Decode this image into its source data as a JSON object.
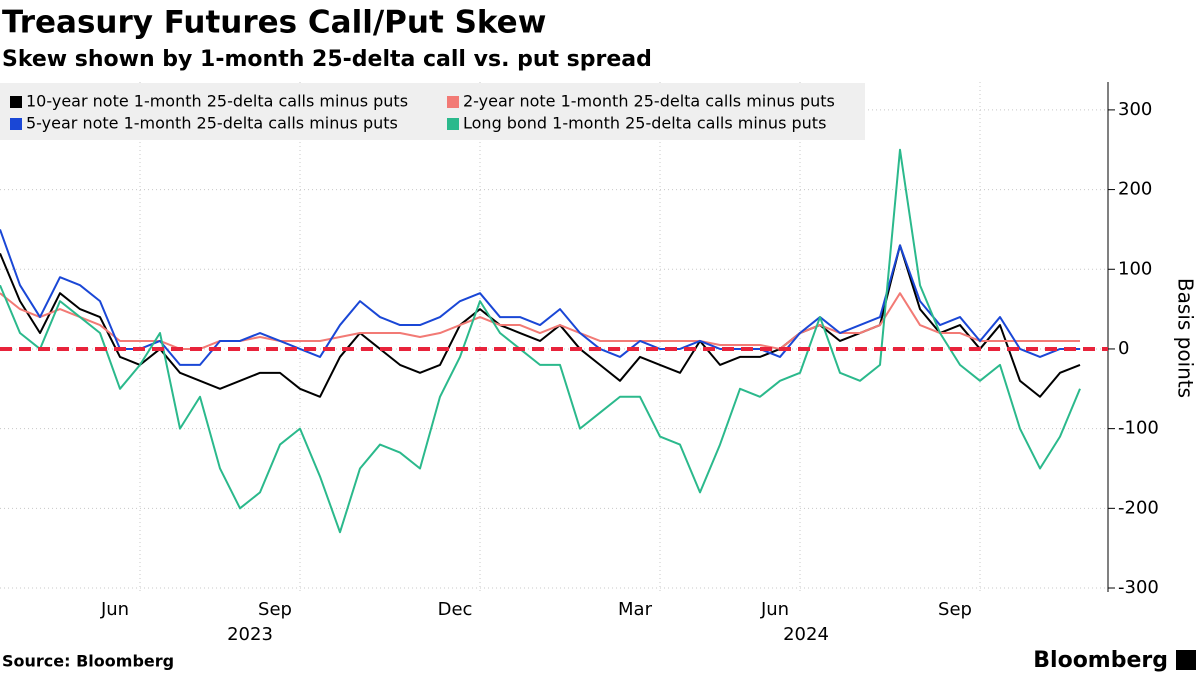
{
  "chart_data": {
    "type": "line",
    "title": "Treasury Futures Call/Put Skew",
    "subtitle": "Skew shown by 1-month 25-delta call vs. put spread",
    "y_label": "Basis points",
    "source": "Source: Bloomberg",
    "brand": "Bloomberg",
    "categories": [
      null,
      null,
      null,
      null,
      null,
      null,
      null,
      "Jun",
      null,
      null,
      null,
      null,
      null,
      null,
      null,
      "Sep",
      null,
      null,
      null,
      null,
      null,
      null,
      null,
      null,
      "Dec",
      null,
      null,
      null,
      null,
      null,
      null,
      null,
      null,
      "Mar",
      null,
      null,
      null,
      null,
      null,
      null,
      "Jun",
      null,
      null,
      null,
      null,
      null,
      null,
      null,
      null,
      "Sep",
      null,
      null,
      null,
      null,
      null
    ],
    "year_labels": [
      "2023",
      "2024"
    ],
    "series": [
      {
        "name": "10-year note 1-month 25-delta calls minus puts",
        "color": "#000000",
        "values": [
          120,
          60,
          20,
          70,
          50,
          40,
          -10,
          -20,
          0,
          -30,
          -40,
          -50,
          -40,
          -30,
          -30,
          -50,
          -60,
          -10,
          20,
          0,
          -20,
          -30,
          -20,
          30,
          50,
          30,
          20,
          10,
          30,
          0,
          -20,
          -40,
          -10,
          -20,
          -30,
          10,
          -20,
          -10,
          -10,
          0,
          20,
          30,
          10,
          20,
          30,
          130,
          50,
          20,
          30,
          0,
          30,
          -40,
          -60,
          -30,
          -20
        ]
      },
      {
        "name": "2-year note 1-month 25-delta calls minus puts",
        "color": "#f27a75",
        "values": [
          70,
          50,
          40,
          50,
          40,
          30,
          10,
          10,
          10,
          0,
          0,
          10,
          10,
          15,
          10,
          10,
          10,
          15,
          20,
          20,
          20,
          15,
          20,
          30,
          40,
          30,
          30,
          20,
          30,
          20,
          10,
          10,
          10,
          10,
          10,
          10,
          5,
          5,
          5,
          0,
          20,
          30,
          20,
          20,
          30,
          70,
          30,
          20,
          20,
          10,
          10,
          10,
          10,
          10,
          10
        ]
      },
      {
        "name": "5-year note 1-month 25-delta calls minus puts",
        "color": "#1a47d6",
        "values": [
          150,
          80,
          40,
          90,
          80,
          60,
          0,
          0,
          10,
          -20,
          -20,
          10,
          10,
          20,
          10,
          0,
          -10,
          30,
          60,
          40,
          30,
          30,
          40,
          60,
          70,
          40,
          40,
          30,
          50,
          20,
          0,
          -10,
          10,
          0,
          0,
          10,
          0,
          0,
          0,
          -10,
          20,
          40,
          20,
          30,
          40,
          130,
          60,
          30,
          40,
          10,
          40,
          0,
          -10,
          0,
          0
        ]
      },
      {
        "name": "Long bond 1-month 25-delta calls minus puts",
        "color": "#2bb98c",
        "values": [
          80,
          20,
          0,
          60,
          40,
          20,
          -50,
          -20,
          20,
          -100,
          -60,
          -150,
          -200,
          -180,
          -120,
          -100,
          -160,
          -230,
          -150,
          -120,
          -130,
          -150,
          -60,
          -10,
          60,
          20,
          0,
          -20,
          -20,
          -100,
          -80,
          -60,
          -60,
          -110,
          -120,
          -180,
          -120,
          -50,
          -60,
          -40,
          -30,
          40,
          -30,
          -40,
          -20,
          250,
          80,
          20,
          -20,
          -40,
          -20,
          -100,
          -150,
          -110,
          -50
        ]
      }
    ],
    "ylim": [
      -305,
      335
    ],
    "yticks": [
      -300,
      -200,
      -100,
      0,
      100,
      200,
      300
    ],
    "reference_line": {
      "value": 0,
      "color": "#e8233b"
    },
    "grid": true,
    "legend": "top-left"
  }
}
